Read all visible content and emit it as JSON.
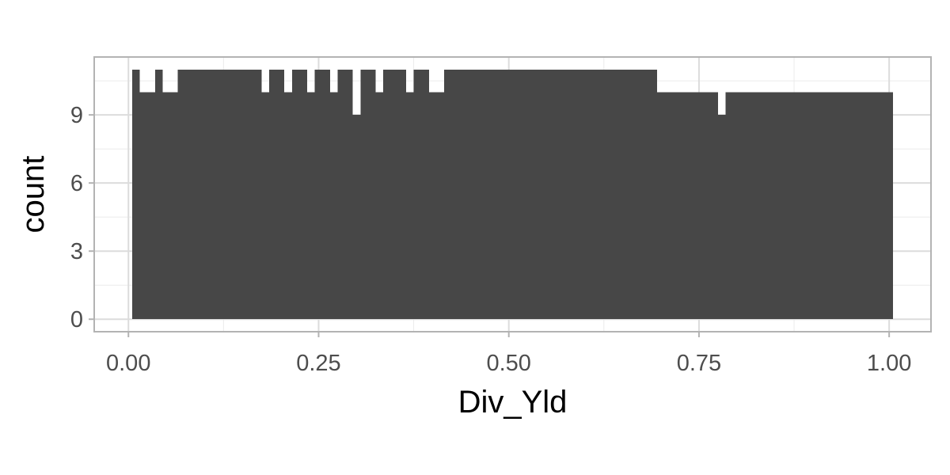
{
  "chart_data": {
    "type": "bar",
    "subtype": "histogram",
    "title": "",
    "xlabel": "Div_Yld",
    "ylabel": "count",
    "xlim": [
      -0.045,
      1.055
    ],
    "ylim": [
      -0.55,
      11.55
    ],
    "x_ticks": [
      {
        "value": 0.0,
        "label": "0.00"
      },
      {
        "value": 0.25,
        "label": "0.25"
      },
      {
        "value": 0.5,
        "label": "0.50"
      },
      {
        "value": 0.75,
        "label": "0.75"
      },
      {
        "value": 1.0,
        "label": "1.00"
      }
    ],
    "x_minor_ticks": [
      0.125,
      0.375,
      0.625,
      0.875
    ],
    "y_ticks": [
      {
        "value": 0,
        "label": "0"
      },
      {
        "value": 3,
        "label": "3"
      },
      {
        "value": 6,
        "label": "6"
      },
      {
        "value": 9,
        "label": "9"
      }
    ],
    "y_minor_ticks": [
      1.5,
      4.5,
      7.5,
      10.5
    ],
    "grid": true,
    "bar_color": "#474747",
    "bins": [
      {
        "x0": 0.005,
        "x1": 0.015,
        "count": 11
      },
      {
        "x0": 0.015,
        "x1": 0.035,
        "count": 10
      },
      {
        "x0": 0.035,
        "x1": 0.045,
        "count": 11
      },
      {
        "x0": 0.045,
        "x1": 0.065,
        "count": 10
      },
      {
        "x0": 0.065,
        "x1": 0.175,
        "count": 11
      },
      {
        "x0": 0.175,
        "x1": 0.185,
        "count": 10
      },
      {
        "x0": 0.185,
        "x1": 0.205,
        "count": 11
      },
      {
        "x0": 0.205,
        "x1": 0.215,
        "count": 10
      },
      {
        "x0": 0.215,
        "x1": 0.235,
        "count": 11
      },
      {
        "x0": 0.235,
        "x1": 0.245,
        "count": 10
      },
      {
        "x0": 0.245,
        "x1": 0.265,
        "count": 11
      },
      {
        "x0": 0.265,
        "x1": 0.275,
        "count": 10
      },
      {
        "x0": 0.275,
        "x1": 0.295,
        "count": 11
      },
      {
        "x0": 0.295,
        "x1": 0.305,
        "count": 9
      },
      {
        "x0": 0.305,
        "x1": 0.325,
        "count": 11
      },
      {
        "x0": 0.325,
        "x1": 0.335,
        "count": 10
      },
      {
        "x0": 0.335,
        "x1": 0.365,
        "count": 11
      },
      {
        "x0": 0.365,
        "x1": 0.375,
        "count": 10
      },
      {
        "x0": 0.375,
        "x1": 0.395,
        "count": 11
      },
      {
        "x0": 0.395,
        "x1": 0.415,
        "count": 10
      },
      {
        "x0": 0.415,
        "x1": 0.695,
        "count": 11
      },
      {
        "x0": 0.695,
        "x1": 0.775,
        "count": 10
      },
      {
        "x0": 0.775,
        "x1": 0.785,
        "count": 9
      },
      {
        "x0": 0.785,
        "x1": 1.005,
        "count": 10
      }
    ]
  }
}
